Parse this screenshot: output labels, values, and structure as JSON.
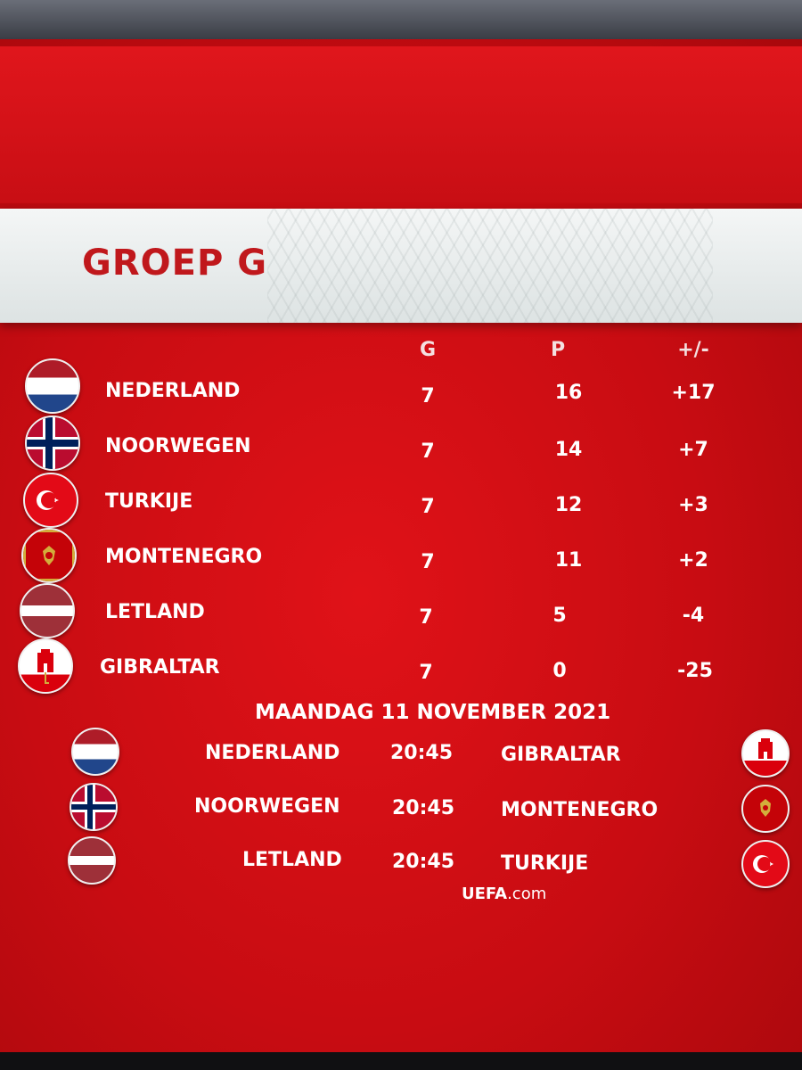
{
  "title": "GROEP G",
  "columns": {
    "played": "G",
    "points": "P",
    "diff": "+/-"
  },
  "standings": [
    {
      "team": "NEDERLAND",
      "played": "7",
      "points": "16",
      "diff": "+17"
    },
    {
      "team": "NOORWEGEN",
      "played": "7",
      "points": "14",
      "diff": "+7"
    },
    {
      "team": "TURKIJE",
      "played": "7",
      "points": "12",
      "diff": "+3"
    },
    {
      "team": "MONTENEGRO",
      "played": "7",
      "points": "11",
      "diff": "+2"
    },
    {
      "team": "LETLAND",
      "played": "7",
      "points": "5",
      "diff": "-4"
    },
    {
      "team": "GIBRALTAR",
      "played": "7",
      "points": "0",
      "diff": "-25"
    }
  ],
  "fixtures_date": "MAANDAG 11 NOVEMBER 2021",
  "fixtures": [
    {
      "home": "NEDERLAND",
      "time": "20:45",
      "away": "GIBRALTAR"
    },
    {
      "home": "NOORWEGEN",
      "time": "20:45",
      "away": "MONTENEGRO"
    },
    {
      "home": "LETLAND",
      "time": "20:45",
      "away": "TURKIJE"
    }
  ],
  "source": {
    "brand": "UEFA",
    "suffix": ".com"
  },
  "flag_icons": [
    "netherlands-flag-icon",
    "norway-flag-icon",
    "turkey-flag-icon",
    "montenegro-flag-icon",
    "latvia-flag-icon",
    "gibraltar-flag-icon"
  ],
  "colors": {
    "background_red": "#c80c12",
    "title_red": "#c0181c",
    "title_bar": "#f4f6f6",
    "text": "#ffffff"
  }
}
